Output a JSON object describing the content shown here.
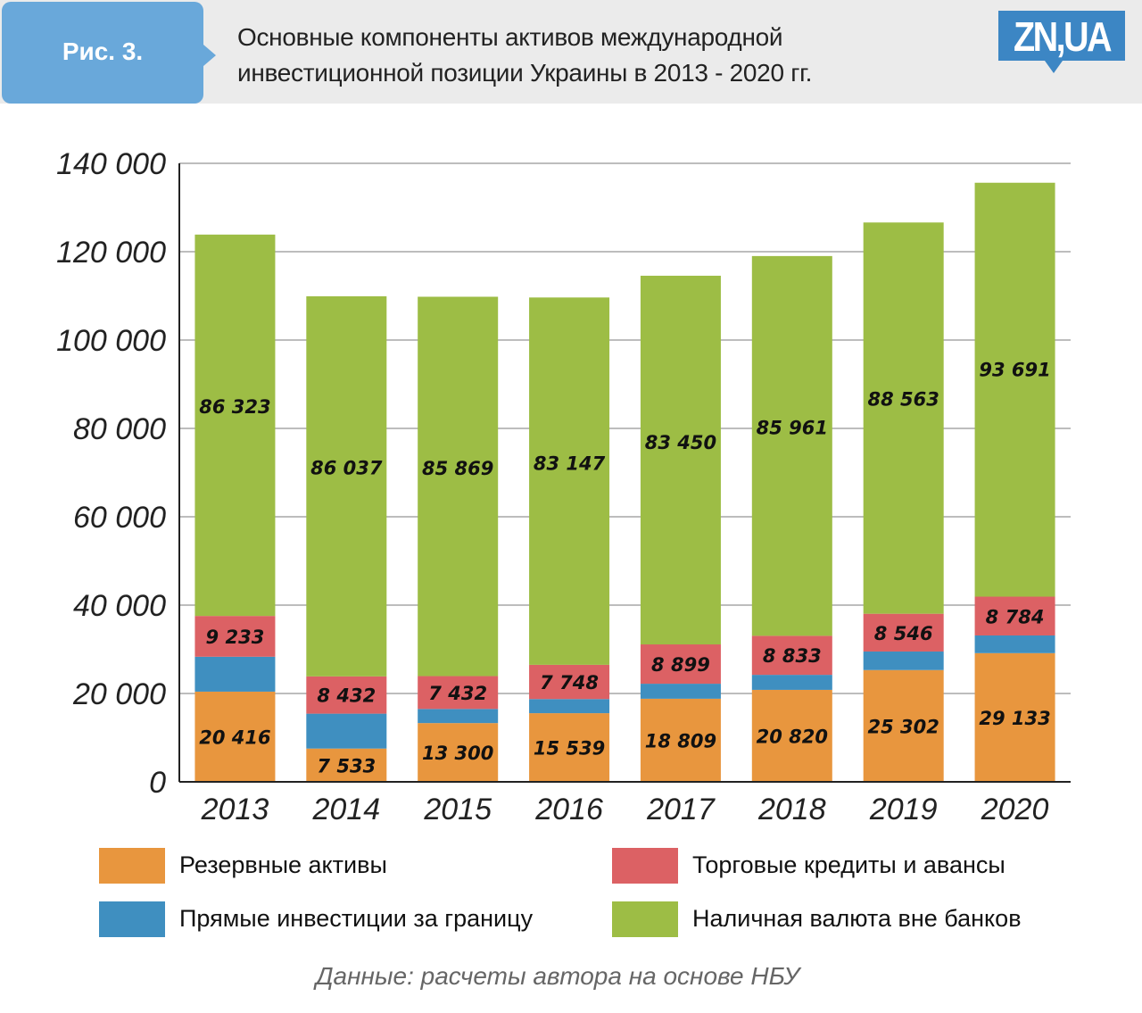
{
  "header": {
    "figure_label": "Рис. 3.",
    "title_line1": "Основные компоненты активов международной",
    "title_line2": "инвестиционной позиции Украины в 2013 - 2020 гг.",
    "logo_text": "ZN,UA"
  },
  "colors": {
    "reserve": "#e8963e",
    "fdi": "#3f8fc0",
    "trade": "#dc6164",
    "cash": "#9dbd45",
    "badge": "#69a8da",
    "logo": "#3c86c4"
  },
  "chart_data": {
    "type": "bar",
    "stacked": true,
    "title": "Основные компоненты активов международной инвестиционной позиции Украины в 2013 - 2020 гг.",
    "xlabel": "",
    "ylabel": "",
    "categories": [
      "2013",
      "2014",
      "2015",
      "2016",
      "2017",
      "2018",
      "2019",
      "2020"
    ],
    "ylim": [
      0,
      140000
    ],
    "yticks": [
      0,
      20000,
      40000,
      60000,
      80000,
      100000,
      120000,
      140000
    ],
    "ytick_labels": [
      "0",
      "20 000",
      "40 000",
      "60 000",
      "80 000",
      "100 000",
      "120 000",
      "140 000"
    ],
    "grid": true,
    "series": [
      {
        "name": "Резервные активы",
        "key": "reserve",
        "values": [
          20416,
          7533,
          13300,
          15539,
          18809,
          20820,
          25302,
          29133
        ],
        "labels": [
          "20 416",
          "7 533",
          "13 300",
          "15 539",
          "18 809",
          "20 820",
          "25 302",
          "29 133"
        ]
      },
      {
        "name": "Прямые инвестиции за границу",
        "key": "fdi",
        "values": [
          7900,
          7900,
          3200,
          3200,
          3400,
          3400,
          4200,
          4000
        ],
        "labels": [
          "",
          "",
          "",
          "",
          "",
          "",
          "",
          ""
        ],
        "estimated": true
      },
      {
        "name": "Торговые кредиты и авансы",
        "key": "trade",
        "values": [
          9233,
          8432,
          7432,
          7748,
          8899,
          8833,
          8546,
          8784
        ],
        "labels": [
          "9 233",
          "8 432",
          "7 432",
          "7 748",
          "8 899",
          "8 833",
          "8 546",
          "8 784"
        ]
      },
      {
        "name": "Наличная валюта вне банков",
        "key": "cash",
        "values": [
          86323,
          86037,
          85869,
          83147,
          83450,
          85961,
          88563,
          93691
        ],
        "labels": [
          "86 323",
          "86 037",
          "85 869",
          "83 147",
          "83 450",
          "85 961",
          "88 563",
          "93 691"
        ]
      }
    ],
    "legend_position": "bottom"
  },
  "legend": [
    {
      "label": "Резервные активы",
      "key": "reserve"
    },
    {
      "label": "Торговые кредиты и авансы",
      "key": "trade"
    },
    {
      "label": "Прямые инвестиции за границу",
      "key": "fdi"
    },
    {
      "label": "Наличная валюта вне банков",
      "key": "cash"
    }
  ],
  "source": "Данные: расчеты автора на основе НБУ"
}
